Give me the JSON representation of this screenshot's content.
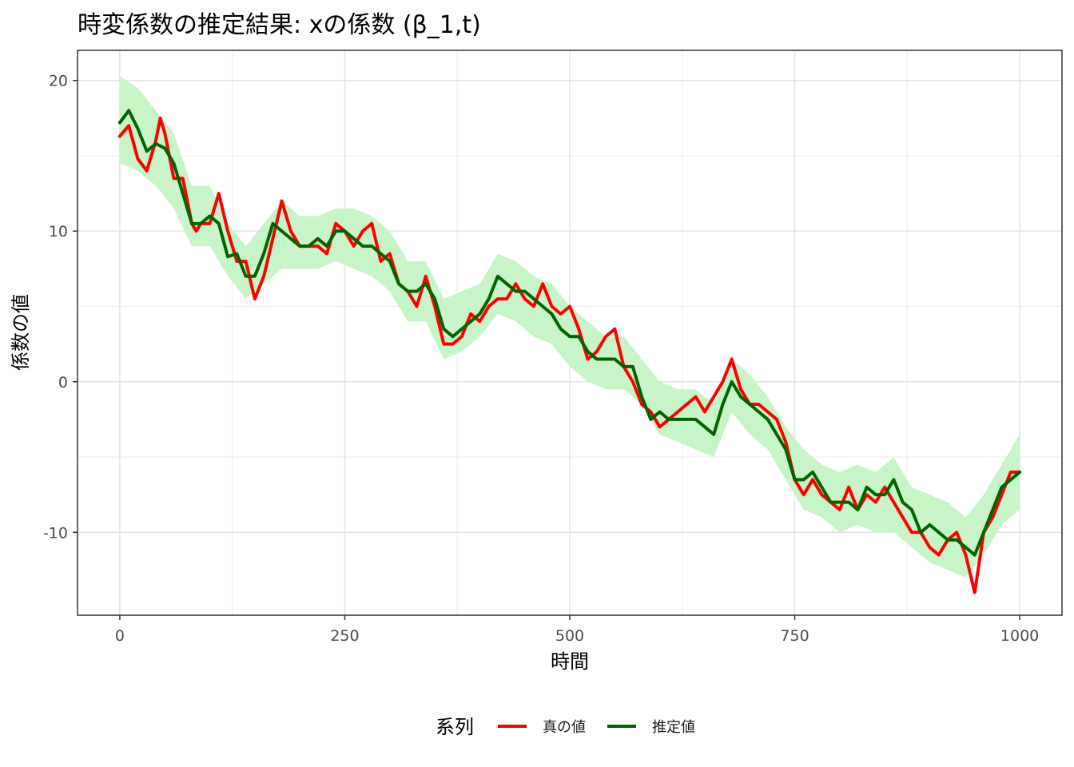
{
  "chart_data": {
    "type": "line",
    "title": "時変係数の推定結果: xの係数 (β_1,t)",
    "xlabel": "時間",
    "ylabel": "係数の値",
    "xlim": [
      -47,
      1047
    ],
    "ylim": [
      -15.5,
      22
    ],
    "x_ticks": [
      0,
      250,
      500,
      750,
      1000
    ],
    "x_tick_labels": [
      "0",
      "250",
      "500",
      "750",
      "1000"
    ],
    "y_ticks": [
      -10,
      0,
      10,
      20
    ],
    "y_tick_labels": [
      "-10",
      "0",
      "10",
      "20"
    ],
    "grid": true,
    "legend": {
      "title": "系列",
      "position": "bottom"
    },
    "series": [
      {
        "name": "真の値",
        "color": "#ff0000",
        "x": [
          0,
          10,
          20,
          30,
          40,
          45,
          50,
          60,
          70,
          80,
          85,
          90,
          100,
          110,
          120,
          130,
          140,
          150,
          160,
          170,
          180,
          190,
          200,
          210,
          220,
          230,
          240,
          250,
          260,
          270,
          280,
          290,
          300,
          310,
          320,
          330,
          340,
          350,
          360,
          370,
          380,
          390,
          400,
          410,
          420,
          430,
          440,
          450,
          460,
          470,
          480,
          490,
          500,
          510,
          520,
          530,
          540,
          550,
          560,
          570,
          580,
          590,
          600,
          610,
          620,
          630,
          640,
          650,
          660,
          670,
          680,
          690,
          700,
          710,
          720,
          730,
          740,
          750,
          760,
          770,
          780,
          790,
          800,
          810,
          820,
          830,
          840,
          850,
          860,
          870,
          880,
          890,
          900,
          910,
          920,
          930,
          940,
          950,
          960,
          970,
          980,
          990,
          1000
        ],
        "values": [
          16.3,
          17.0,
          14.8,
          14.0,
          16.0,
          17.5,
          16.5,
          13.5,
          13.5,
          10.5,
          10.0,
          10.5,
          10.5,
          12.5,
          10.0,
          8.0,
          8.0,
          5.5,
          7.0,
          9.5,
          12.0,
          10.0,
          9.0,
          9.0,
          9.0,
          8.5,
          10.5,
          10.0,
          9.0,
          10.0,
          10.5,
          8.0,
          8.5,
          6.5,
          6.0,
          5.0,
          7.0,
          5.0,
          2.5,
          2.5,
          3.0,
          4.5,
          4.0,
          5.0,
          5.5,
          5.5,
          6.5,
          5.5,
          5.0,
          6.5,
          5.0,
          4.5,
          5.0,
          3.5,
          1.5,
          2.0,
          3.0,
          3.5,
          1.0,
          0.0,
          -1.5,
          -2.0,
          -3.0,
          -2.5,
          -2.0,
          -1.5,
          -1.0,
          -2.0,
          -1.0,
          0.0,
          1.5,
          -0.5,
          -1.5,
          -1.5,
          -2.0,
          -2.5,
          -4.0,
          -6.5,
          -7.5,
          -6.5,
          -7.5,
          -8.0,
          -8.5,
          -7.0,
          -8.5,
          -7.5,
          -8.0,
          -7.0,
          -8.0,
          -9.0,
          -10.0,
          -10.0,
          -11.0,
          -11.5,
          -10.5,
          -10.0,
          -11.5,
          -14.0,
          -10.0,
          -9.0,
          -7.5,
          -6.0,
          -6.0
        ]
      },
      {
        "name": "推定値",
        "color": "#006400",
        "x": [
          0,
          10,
          20,
          30,
          40,
          50,
          60,
          70,
          80,
          90,
          100,
          110,
          120,
          130,
          140,
          150,
          160,
          170,
          180,
          190,
          200,
          210,
          220,
          230,
          240,
          250,
          260,
          270,
          280,
          290,
          300,
          310,
          320,
          330,
          340,
          350,
          360,
          370,
          380,
          390,
          400,
          410,
          420,
          430,
          440,
          450,
          460,
          470,
          480,
          490,
          500,
          510,
          520,
          530,
          540,
          550,
          560,
          570,
          580,
          590,
          600,
          610,
          620,
          630,
          640,
          650,
          660,
          670,
          680,
          690,
          700,
          710,
          720,
          730,
          740,
          750,
          760,
          770,
          780,
          790,
          800,
          810,
          820,
          830,
          840,
          850,
          860,
          870,
          880,
          890,
          900,
          910,
          920,
          930,
          940,
          950,
          960,
          970,
          980,
          990,
          1000
        ],
        "values": [
          17.2,
          18.0,
          16.8,
          15.3,
          15.8,
          15.5,
          14.5,
          12.5,
          10.5,
          10.5,
          11.0,
          10.5,
          8.3,
          8.5,
          7.0,
          7.0,
          8.5,
          10.5,
          10.0,
          9.5,
          9.0,
          9.0,
          9.5,
          9.0,
          10.0,
          10.0,
          9.5,
          9.0,
          9.0,
          8.5,
          8.0,
          6.5,
          6.0,
          6.0,
          6.5,
          5.5,
          3.5,
          3.0,
          3.5,
          4.0,
          4.5,
          5.5,
          7.0,
          6.5,
          6.0,
          6.0,
          5.5,
          5.0,
          4.5,
          3.5,
          3.0,
          3.0,
          2.0,
          1.5,
          1.5,
          1.5,
          1.0,
          1.0,
          -1.0,
          -2.5,
          -2.0,
          -2.5,
          -2.5,
          -2.5,
          -2.5,
          -3.0,
          -3.5,
          -1.5,
          0.0,
          -1.0,
          -1.5,
          -2.0,
          -2.5,
          -3.5,
          -4.5,
          -6.5,
          -6.5,
          -6.0,
          -7.0,
          -8.0,
          -8.0,
          -8.0,
          -8.5,
          -7.0,
          -7.5,
          -7.5,
          -6.5,
          -8.0,
          -8.5,
          -10.0,
          -9.5,
          -10.0,
          -10.5,
          -10.5,
          -11.0,
          -11.5,
          -10.0,
          -8.5,
          -7.0,
          -6.5,
          -6.0
        ]
      }
    ],
    "band": {
      "color": "#c8f5c8",
      "x": [
        0,
        20,
        40,
        60,
        80,
        100,
        120,
        140,
        160,
        180,
        200,
        220,
        240,
        260,
        280,
        300,
        320,
        340,
        360,
        380,
        400,
        420,
        440,
        460,
        480,
        500,
        520,
        540,
        560,
        580,
        600,
        620,
        640,
        660,
        680,
        700,
        720,
        740,
        760,
        780,
        800,
        820,
        840,
        860,
        880,
        900,
        920,
        940,
        960,
        980,
        1000
      ],
      "lower": [
        14.5,
        14.0,
        13.0,
        11.5,
        9.0,
        9.0,
        7.0,
        5.5,
        6.5,
        7.5,
        7.5,
        7.5,
        8.0,
        7.5,
        7.0,
        6.0,
        4.0,
        4.0,
        1.5,
        2.0,
        3.0,
        4.5,
        4.0,
        3.0,
        2.5,
        1.0,
        0.0,
        -0.5,
        -0.5,
        -1.5,
        -3.5,
        -4.0,
        -4.5,
        -5.0,
        -2.0,
        -3.5,
        -4.5,
        -6.5,
        -8.5,
        -9.0,
        -10.0,
        -9.5,
        -10.0,
        -10.0,
        -11.0,
        -12.0,
        -12.5,
        -13.0,
        -11.5,
        -9.5,
        -8.5
      ],
      "upper": [
        20.3,
        19.5,
        18.0,
        16.5,
        13.0,
        13.0,
        10.5,
        9.0,
        10.5,
        12.0,
        11.0,
        11.0,
        11.5,
        11.5,
        11.0,
        10.0,
        8.0,
        8.0,
        5.5,
        6.0,
        6.5,
        8.5,
        8.0,
        7.0,
        6.5,
        5.0,
        4.0,
        3.0,
        3.0,
        1.5,
        0.0,
        -0.5,
        -0.5,
        -1.5,
        1.5,
        0.5,
        -1.0,
        -3.0,
        -4.5,
        -5.5,
        -6.0,
        -5.5,
        -6.0,
        -5.0,
        -7.0,
        -7.5,
        -8.0,
        -9.0,
        -7.5,
        -5.5,
        -3.5
      ]
    }
  }
}
